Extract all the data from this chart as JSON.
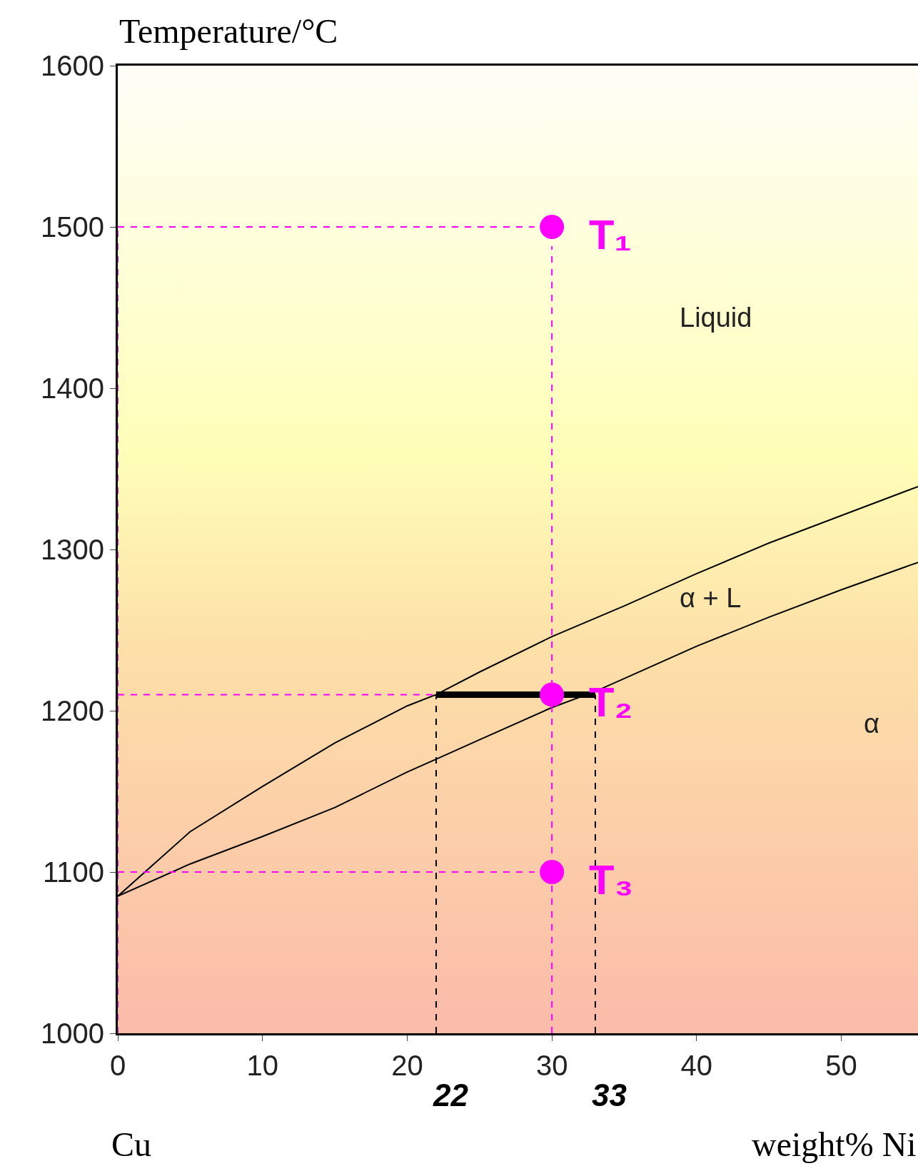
{
  "chart_data": {
    "type": "line",
    "xlabel": "weight% Ni",
    "ylabel": "Temperature/°C",
    "xlim": [
      0,
      55.3
    ],
    "ylim": [
      1000,
      1600
    ],
    "xticks": [
      0,
      10,
      20,
      30,
      40,
      50
    ],
    "yticks": [
      1000,
      1100,
      1200,
      1300,
      1400,
      1500,
      1600
    ],
    "grid": false,
    "series": [
      {
        "color": "#000000",
        "line_style": "solid",
        "x": [
          0,
          5,
          10,
          15,
          20,
          22,
          25,
          30,
          35,
          40,
          45,
          50,
          55.3
        ],
        "values": [
          1085,
          1125,
          1153,
          1180,
          1203,
          1210,
          1224,
          1246,
          1265,
          1285,
          1304,
          1321,
          1339
        ]
      },
      {
        "color": "#000000",
        "line_style": "solid",
        "x": [
          0,
          5,
          10,
          15,
          20,
          22,
          25,
          30,
          33,
          35,
          40,
          45,
          50,
          55.3
        ],
        "values": [
          1085,
          1105,
          1122,
          1140,
          1162,
          1170,
          1182,
          1202,
          1212,
          1220,
          1240,
          1258,
          1275,
          1292
        ]
      },
      {
        "color": "#ff00ff",
        "line_style": "dashed",
        "x": [
          0,
          28.8
        ],
        "values": [
          1500,
          1500
        ]
      },
      {
        "color": "#ff00ff",
        "line_style": "dashed",
        "x": [
          0,
          22
        ],
        "values": [
          1210,
          1210
        ]
      },
      {
        "color": "#ff00ff",
        "line_style": "dashed",
        "x": [
          0,
          28.8
        ],
        "values": [
          1100,
          1100
        ]
      },
      {
        "color": "#ff00ff",
        "line_style": "dashed",
        "x": [
          30,
          30
        ],
        "values": [
          1000,
          1488
        ]
      },
      {
        "color": "#ff00ff",
        "line_style": "dashed",
        "x": [
          0,
          0
        ],
        "values": [
          1000,
          1500
        ]
      },
      {
        "color": "#000000",
        "line_style": "dashed",
        "x": [
          22,
          22
        ],
        "values": [
          1000,
          1210
        ]
      },
      {
        "color": "#000000",
        "line_style": "dashed",
        "x": [
          33,
          33
        ],
        "values": [
          1000,
          1210
        ]
      },
      {
        "color": "#000000",
        "line_style": "solid",
        "x": [
          22,
          33
        ],
        "values": [
          1210,
          1210
        ]
      },
      {
        "type": "scatter",
        "color": "#ff00ff",
        "marker": "circle",
        "x": [
          30,
          30,
          30
        ],
        "values": [
          1500,
          1210,
          1100
        ]
      }
    ],
    "annotations": [
      "Liquid",
      "α + L",
      "α",
      {
        "text": "T₁",
        "x": 30,
        "y": 1500
      },
      {
        "text": "T₂",
        "x": 30,
        "y": 1210
      },
      {
        "text": "T₃",
        "x": 30,
        "y": 1100
      },
      {
        "text": "22",
        "x": 22,
        "y": 1000
      },
      {
        "text": "33",
        "x": 33,
        "y": 1000
      },
      "Cu"
    ]
  }
}
